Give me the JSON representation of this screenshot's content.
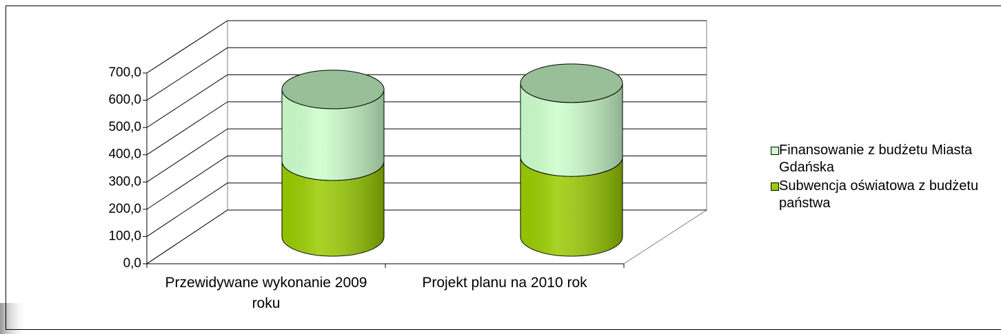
{
  "chart_data": {
    "type": "cylinder-stacked",
    "categories": [
      "Przewidywane wykonanie 2009 roku",
      "Projekt planu na 2010 rok"
    ],
    "series": [
      {
        "name": "Subwencja oświatowa z budżetu państwa",
        "color": "#99cc00",
        "values": [
          279,
          294
        ]
      },
      {
        "name": "Finansowanie z budżetu Miasta Gdańska",
        "color": "#ccffcc",
        "values": [
          264,
          272
        ]
      }
    ],
    "ylim": [
      0,
      700
    ],
    "yticks": [
      {
        "value": 0,
        "label": "0,0"
      },
      {
        "value": 100,
        "label": "100,0"
      },
      {
        "value": 200,
        "label": "200,0"
      },
      {
        "value": 300,
        "label": "300,0"
      },
      {
        "value": 400,
        "label": "400,0"
      },
      {
        "value": 500,
        "label": "500,0"
      },
      {
        "value": 600,
        "label": "600,0"
      },
      {
        "value": 700,
        "label": "700,0"
      }
    ],
    "grid": true
  }
}
